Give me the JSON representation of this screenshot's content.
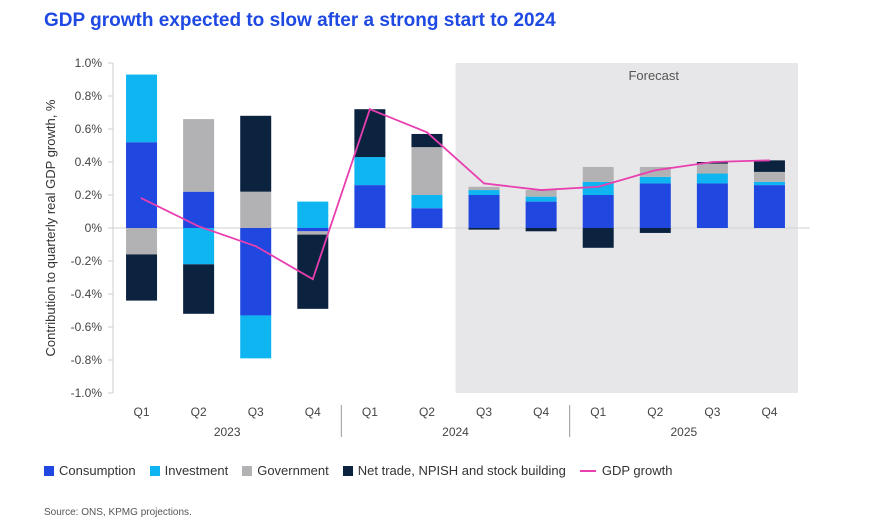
{
  "title": "GDP growth expected to slow after a strong start to 2024",
  "source": "Source: ONS, KPMG projections.",
  "chart_data": {
    "type": "bar",
    "stacked": true,
    "categories": [
      "Q1",
      "Q2",
      "Q3",
      "Q4",
      "Q1",
      "Q2",
      "Q3",
      "Q4",
      "Q1",
      "Q2",
      "Q3",
      "Q4"
    ],
    "year_groups": [
      {
        "label": "2023",
        "start": 0,
        "end": 3
      },
      {
        "label": "2024",
        "start": 4,
        "end": 7
      },
      {
        "label": "2025",
        "start": 8,
        "end": 11
      }
    ],
    "ylabel": "Contribution to quarterly real GDP growth, %",
    "xlabel": "",
    "ylim": [
      -1.0,
      1.0
    ],
    "yticks": [
      1.0,
      0.8,
      0.6,
      0.4,
      0.2,
      0,
      -0.2,
      -0.4,
      -0.6,
      -0.8,
      -1.0
    ],
    "ytick_labels": [
      "1.0%",
      "0.8%",
      "0.6%",
      "0.4%",
      "0.2%",
      "0%",
      "-0.2%",
      "-0.4%",
      "-0.6%",
      "-0.8%",
      "-1.0%"
    ],
    "forecast": {
      "label": "Forecast",
      "start_index": 6
    },
    "series": [
      {
        "name": "Consumption",
        "color": "#2047e0",
        "values": [
          0.52,
          0.22,
          -0.53,
          -0.02,
          0.26,
          0.12,
          0.2,
          0.16,
          0.2,
          0.27,
          0.27,
          0.26
        ]
      },
      {
        "name": "Investment",
        "color": "#0fb5f0",
        "values": [
          0.41,
          -0.22,
          -0.26,
          0.16,
          0.17,
          0.08,
          0.03,
          0.03,
          0.08,
          0.04,
          0.06,
          0.02
        ]
      },
      {
        "name": "Government",
        "color": "#b2b2b4",
        "values": [
          -0.16,
          0.44,
          0.22,
          -0.02,
          0.0,
          0.29,
          0.02,
          0.04,
          0.09,
          0.06,
          0.06,
          0.06
        ]
      },
      {
        "name": "Net trade, NPISH and stock building",
        "color": "#0c2340",
        "values": [
          -0.28,
          -0.3,
          0.46,
          -0.45,
          0.29,
          0.08,
          -0.01,
          -0.02,
          -0.12,
          -0.03,
          0.01,
          0.07
        ]
      }
    ],
    "line": {
      "name": "GDP growth",
      "color": "#e83fb0",
      "values": [
        0.18,
        0.01,
        -0.11,
        -0.31,
        0.72,
        0.58,
        0.27,
        0.23,
        0.25,
        0.35,
        0.4,
        0.41
      ]
    }
  }
}
